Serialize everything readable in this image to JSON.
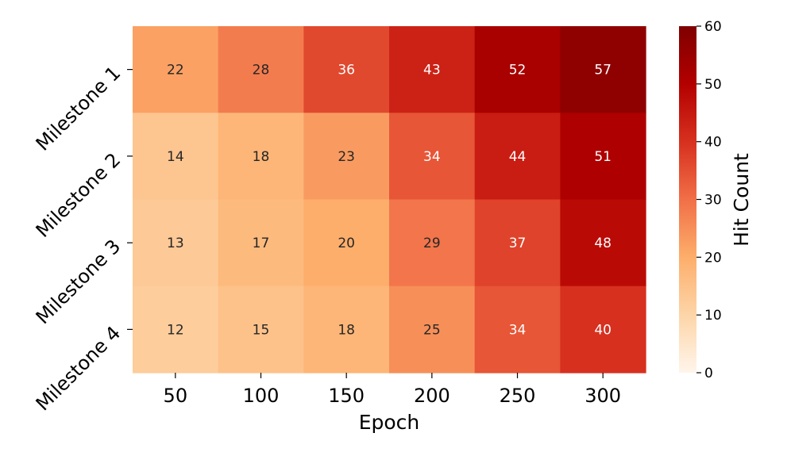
{
  "chart_data": {
    "type": "heatmap",
    "title": "",
    "xlabel": "Epoch",
    "ylabel": "",
    "x_categories": [
      "50",
      "100",
      "150",
      "200",
      "250",
      "300"
    ],
    "y_categories": [
      "Milestone 1",
      "Milestone 2",
      "Milestone 3",
      "Milestone 4"
    ],
    "values": [
      [
        22,
        28,
        36,
        43,
        52,
        57
      ],
      [
        14,
        18,
        23,
        34,
        44,
        51
      ],
      [
        13,
        17,
        20,
        29,
        37,
        48
      ],
      [
        12,
        15,
        18,
        25,
        34,
        40
      ]
    ],
    "colorbar": {
      "label": "Hit Count",
      "range": [
        0,
        60
      ],
      "ticks": [
        0,
        10,
        20,
        30,
        40,
        50,
        60
      ],
      "colormap": "OrRd-like",
      "color_stops": [
        "#fff5eb",
        "#fdd5a8",
        "#fdae6b",
        "#f16f47",
        "#d7301f",
        "#b30000",
        "#7f0000"
      ]
    },
    "annotations": true,
    "grid": false,
    "text_color_light": "#ffffff",
    "text_color_dark": "#262626"
  }
}
